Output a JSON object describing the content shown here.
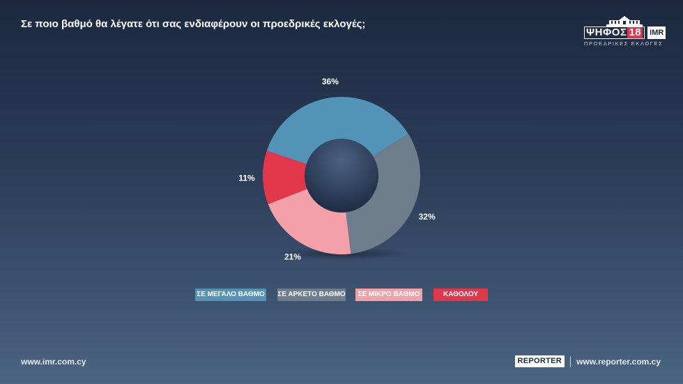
{
  "title": "Σε ποιο βαθμό θα λέγατε ότι σας ενδιαφέρουν οι προεδρικές εκλογές;",
  "logo": {
    "brand": "ΨΗΦΟΣ",
    "number": "18",
    "partner": "IMR",
    "subtitle": "ΠΡΟΕΔΡΙΚΕΣ ΕΚΛΟΓΕΣ"
  },
  "chart_data": {
    "type": "pie",
    "variant": "donut",
    "categories": [
      "ΣΕ ΜΕΓΑΛΟ ΒΑΘΜΟ",
      "ΣΕ ΑΡΚΕΤΟ ΒΑΘΜΟ",
      "ΣΕ ΜΙΚΡΟ ΒΑΘΜΟ",
      "ΚΑΘΟΛΟΥ"
    ],
    "values": [
      36,
      32,
      21,
      11
    ],
    "labels": [
      "36%",
      "32%",
      "21%",
      "11%"
    ],
    "colors": [
      "#5393b8",
      "#6e7d8c",
      "#f4a0a8",
      "#e2364a"
    ],
    "legend": "bottom"
  },
  "footer": {
    "left_url": "www.imr.com.cy",
    "brand": "REPORTER",
    "right_url": "www.reporter.com.cy"
  }
}
